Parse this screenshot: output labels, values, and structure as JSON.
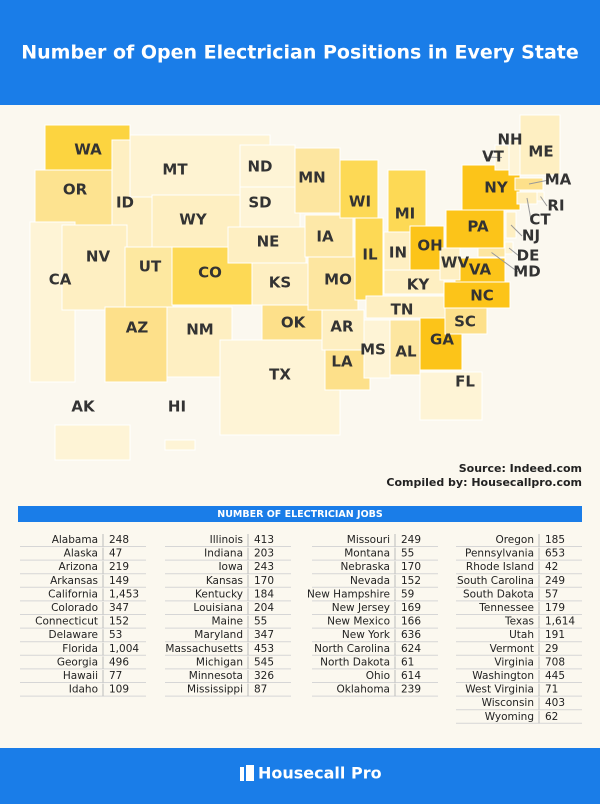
{
  "header": {
    "title": "Number of Open Electrician Positions in Every State"
  },
  "map": {
    "states": [
      {
        "label": "WA",
        "color": "#fcd440"
      },
      {
        "label": "OR",
        "color": "#fde390"
      },
      {
        "label": "CA",
        "color": "#fef4d6"
      },
      {
        "label": "ID",
        "color": "#feefc2"
      },
      {
        "label": "NV",
        "color": "#feefc2"
      },
      {
        "label": "MT",
        "color": "#fef3d2"
      },
      {
        "label": "WY",
        "color": "#feefc2"
      },
      {
        "label": "UT",
        "color": "#fde8a0"
      },
      {
        "label": "AZ",
        "color": "#fde08a"
      },
      {
        "label": "CO",
        "color": "#fdd955"
      },
      {
        "label": "NM",
        "color": "#feefc2"
      },
      {
        "label": "ND",
        "color": "#fef4d6"
      },
      {
        "label": "SD",
        "color": "#fef4d6"
      },
      {
        "label": "NE",
        "color": "#feefc2"
      },
      {
        "label": "KS",
        "color": "#feefc2"
      },
      {
        "label": "OK",
        "color": "#fde08a"
      },
      {
        "label": "TX",
        "color": "#fef4d6"
      },
      {
        "label": "MN",
        "color": "#fde6a0"
      },
      {
        "label": "IA",
        "color": "#fde8a8"
      },
      {
        "label": "MO",
        "color": "#fde6a0"
      },
      {
        "label": "AR",
        "color": "#feefc2"
      },
      {
        "label": "LA",
        "color": "#fde08a"
      },
      {
        "label": "WI",
        "color": "#fdd955"
      },
      {
        "label": "IL",
        "color": "#fdd955"
      },
      {
        "label": "MI",
        "color": "#fdd955"
      },
      {
        "label": "IN",
        "color": "#feefc2"
      },
      {
        "label": "OH",
        "color": "#fcc419"
      },
      {
        "label": "KY",
        "color": "#feefc2"
      },
      {
        "label": "TN",
        "color": "#feefc2"
      },
      {
        "label": "MS",
        "color": "#fef4d6"
      },
      {
        "label": "AL",
        "color": "#fde6a0"
      },
      {
        "label": "GA",
        "color": "#fcc419"
      },
      {
        "label": "FL",
        "color": "#fef4d6"
      },
      {
        "label": "SC",
        "color": "#fde08a"
      },
      {
        "label": "NC",
        "color": "#fcc419"
      },
      {
        "label": "VA",
        "color": "#fcc419"
      },
      {
        "label": "WV",
        "color": "#feefc2"
      },
      {
        "label": "PA",
        "color": "#fcc419"
      },
      {
        "label": "NY",
        "color": "#fcc419"
      },
      {
        "label": "VT",
        "color": "#fef4d6"
      },
      {
        "label": "NH",
        "color": "#fef4d6"
      },
      {
        "label": "ME",
        "color": "#feefc2"
      },
      {
        "label": "MA",
        "color": "#fde08a"
      },
      {
        "label": "RI",
        "color": "#fef4d6"
      },
      {
        "label": "CT",
        "color": "#feefc2"
      },
      {
        "label": "NJ",
        "color": "#feefc2"
      },
      {
        "label": "DE",
        "color": "#fef4d6"
      },
      {
        "label": "MD",
        "color": "#fde6a0"
      },
      {
        "label": "AK",
        "color": "#fef4d6"
      },
      {
        "label": "HI",
        "color": "#fef4d6"
      }
    ],
    "source": "Source: Indeed.com",
    "compiled_by": "Compiled by: Housecallpro.com"
  },
  "table": {
    "title": "NUMBER OF ELECTRICIAN JOBS",
    "columns": [
      [
        [
          "Alabama",
          "248"
        ],
        [
          "Alaska",
          "47"
        ],
        [
          "Arizona",
          "219"
        ],
        [
          "Arkansas",
          "149"
        ],
        [
          "California",
          "1,453"
        ],
        [
          "Colorado",
          "347"
        ],
        [
          "Connecticut",
          "152"
        ],
        [
          "Delaware",
          "53"
        ],
        [
          "Florida",
          "1,004"
        ],
        [
          "Georgia",
          "496"
        ],
        [
          "Hawaii",
          "77"
        ],
        [
          "Idaho",
          "109"
        ]
      ],
      [
        [
          "Illinois",
          "413"
        ],
        [
          "Indiana",
          "203"
        ],
        [
          "Iowa",
          "243"
        ],
        [
          "Kansas",
          "170"
        ],
        [
          "Kentucky",
          "184"
        ],
        [
          "Louisiana",
          "204"
        ],
        [
          "Maine",
          "55"
        ],
        [
          "Maryland",
          "347"
        ],
        [
          "Massachusetts",
          "453"
        ],
        [
          "Michigan",
          "545"
        ],
        [
          "Minnesota",
          "326"
        ],
        [
          "Mississippi",
          "87"
        ]
      ],
      [
        [
          "Missouri",
          "249"
        ],
        [
          "Montana",
          "55"
        ],
        [
          "Nebraska",
          "170"
        ],
        [
          "Nevada",
          "152"
        ],
        [
          "New Hampshire",
          "59"
        ],
        [
          "New Jersey",
          "169"
        ],
        [
          "New Mexico",
          "166"
        ],
        [
          "New York",
          "636"
        ],
        [
          "North Carolina",
          "624"
        ],
        [
          "North Dakota",
          "61"
        ],
        [
          "Ohio",
          "614"
        ],
        [
          "Oklahoma",
          "239"
        ]
      ],
      [
        [
          "Oregon",
          "185"
        ],
        [
          "Pennsylvania",
          "653"
        ],
        [
          "Rhode Island",
          "42"
        ],
        [
          "South Carolina",
          "249"
        ],
        [
          "South Dakota",
          "57"
        ],
        [
          "Tennessee",
          "179"
        ],
        [
          "Texas",
          "1,614"
        ],
        [
          "Utah",
          "191"
        ],
        [
          "Vermont",
          "29"
        ],
        [
          "Virginia",
          "708"
        ],
        [
          "Washington",
          "445"
        ],
        [
          "West Virginia",
          "71"
        ],
        [
          "Wisconsin",
          "403"
        ],
        [
          "Wyoming",
          "62"
        ]
      ]
    ]
  },
  "footer": {
    "brand": "Housecall Pro"
  }
}
